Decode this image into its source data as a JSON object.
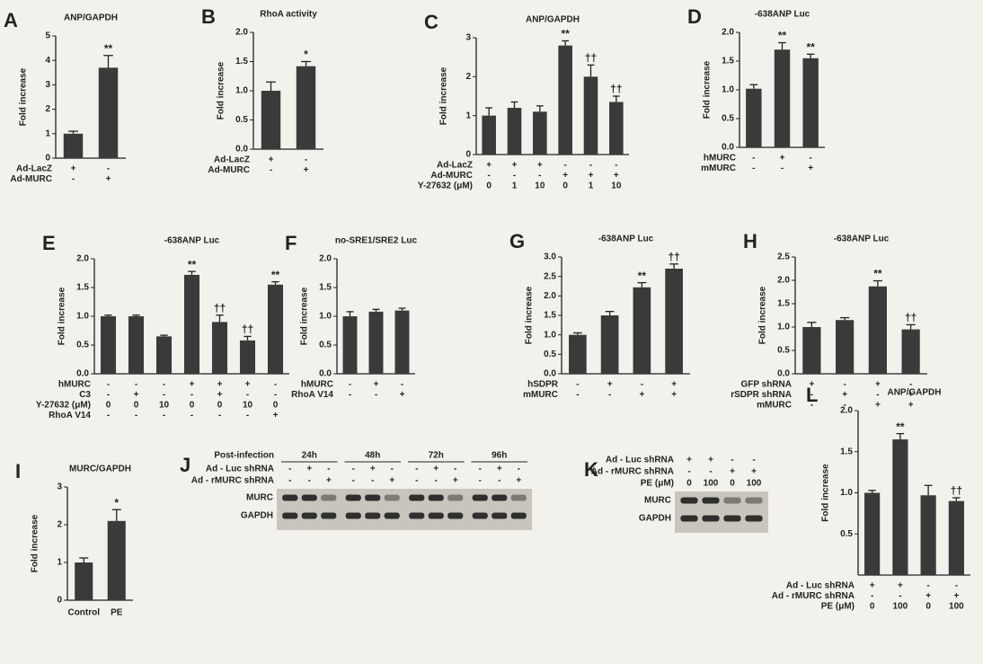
{
  "chart_data": [
    {
      "type": "bar",
      "panel": "A",
      "title": "ANP/GAPDH",
      "ylabel": "Fold increase",
      "values": [
        1.0,
        3.7
      ],
      "errors": [
        0.1,
        0.5
      ],
      "significance": [
        null,
        "**"
      ],
      "ylim": [
        0,
        5
      ],
      "yticks": [
        0,
        1,
        2,
        3,
        4,
        5
      ],
      "color": "#3a3a3a",
      "conditions": [
        {
          "label": "Ad-LacZ",
          "marks": [
            "+",
            "-"
          ]
        },
        {
          "label": "Ad-MURC",
          "marks": [
            "-",
            "+"
          ]
        }
      ]
    },
    {
      "type": "bar",
      "panel": "B",
      "title": "RhoA activity",
      "ylabel": "Fold increase",
      "values": [
        1.0,
        1.42
      ],
      "errors": [
        0.15,
        0.08
      ],
      "significance": [
        null,
        "*"
      ],
      "ylim": [
        0,
        2.0
      ],
      "yticks": [
        {
          "value": 0,
          "label": "0.0"
        },
        0.5,
        {
          "value": 1,
          "label": "1.0"
        },
        1.5,
        {
          "value": 2,
          "label": "2.0"
        }
      ],
      "color": "#3a3a3a",
      "conditions": [
        {
          "label": "Ad-LacZ",
          "marks": [
            "+",
            "-"
          ]
        },
        {
          "label": "Ad-MURC",
          "marks": [
            "-",
            "+"
          ]
        }
      ]
    },
    {
      "type": "bar",
      "panel": "C",
      "title": "ANP/GAPDH",
      "ylabel": "Fold increase",
      "values": [
        1.0,
        1.2,
        1.1,
        2.8,
        2.0,
        1.35
      ],
      "errors": [
        0.2,
        0.15,
        0.15,
        0.12,
        0.3,
        0.15
      ],
      "significance": [
        null,
        null,
        null,
        "**",
        "††",
        "††"
      ],
      "ylim": [
        0,
        3
      ],
      "yticks": [
        0,
        1,
        2,
        3
      ],
      "color": "#3a3a3a",
      "conditions": [
        {
          "label": "Ad-LacZ",
          "marks": [
            "+",
            "+",
            "+",
            "-",
            "-",
            "-"
          ]
        },
        {
          "label": "Ad-MURC",
          "marks": [
            "-",
            "-",
            "-",
            "+",
            "+",
            "+"
          ]
        },
        {
          "label": "Y-27632 (μM)",
          "marks": [
            "0",
            "1",
            "10",
            "0",
            "1",
            "10"
          ]
        }
      ]
    },
    {
      "type": "bar",
      "panel": "D",
      "title": "-638ANP Luc",
      "ylabel": "Fold increase",
      "values": [
        1.02,
        1.7,
        1.55
      ],
      "errors": [
        0.07,
        0.12,
        0.07
      ],
      "significance": [
        null,
        "**",
        "**"
      ],
      "ylim": [
        0,
        2.0
      ],
      "yticks": [
        {
          "value": 0,
          "label": "0.0"
        },
        0.5,
        {
          "value": 1,
          "label": "1.0"
        },
        1.5,
        {
          "value": 2,
          "label": "2.0"
        }
      ],
      "color": "#3a3a3a",
      "conditions": [
        {
          "label": "hMURC",
          "marks": [
            "-",
            "+",
            "-"
          ]
        },
        {
          "label": "mMURC",
          "marks": [
            "-",
            "-",
            "+"
          ]
        }
      ]
    },
    {
      "type": "bar",
      "panel": "E",
      "title": "-638ANP Luc",
      "ylabel": "Fold increase",
      "values": [
        1.0,
        1.0,
        0.65,
        1.72,
        0.9,
        0.58,
        1.55
      ],
      "errors": [
        0.02,
        0.02,
        0.02,
        0.06,
        0.12,
        0.07,
        0.05
      ],
      "significance": [
        null,
        null,
        null,
        "**",
        "††",
        "††",
        "**"
      ],
      "ylim": [
        0,
        2.0
      ],
      "yticks": [
        {
          "value": 0,
          "label": "0.0"
        },
        0.5,
        {
          "value": 1,
          "label": "1.0"
        },
        1.5,
        {
          "value": 2,
          "label": "2.0"
        }
      ],
      "color": "#3a3a3a",
      "conditions": [
        {
          "label": "hMURC",
          "marks": [
            "-",
            "-",
            "-",
            "+",
            "+",
            "+",
            "-"
          ]
        },
        {
          "label": "C3",
          "marks": [
            "-",
            "+",
            "-",
            "-",
            "+",
            "-",
            "-"
          ]
        },
        {
          "label": "Y-27632 (μM)",
          "marks": [
            "0",
            "0",
            "10",
            "0",
            "0",
            "10",
            "0"
          ]
        },
        {
          "label": "RhoA V14",
          "marks": [
            "-",
            "-",
            "-",
            "-",
            "-",
            "-",
            "+"
          ]
        }
      ]
    },
    {
      "type": "bar",
      "panel": "F",
      "title": "no-SRE1/SRE2 Luc",
      "ylabel": "Fold increase",
      "values": [
        1.0,
        1.08,
        1.1
      ],
      "errors": [
        0.08,
        0.04,
        0.04
      ],
      "significance": [
        null,
        null,
        null
      ],
      "ylim": [
        0,
        2.0
      ],
      "yticks": [
        {
          "value": 0,
          "label": "0.0"
        },
        0.5,
        {
          "value": 1,
          "label": "1.0"
        },
        1.5,
        {
          "value": 2,
          "label": "2.0"
        }
      ],
      "color": "#3a3a3a",
      "conditions": [
        {
          "label": "hMURC",
          "marks": [
            "-",
            "+",
            "-"
          ]
        },
        {
          "label": "RhoA V14",
          "marks": [
            "-",
            "-",
            "+"
          ]
        }
      ]
    },
    {
      "type": "bar",
      "panel": "G",
      "title": "-638ANP Luc",
      "ylabel": "Fold increase",
      "values": [
        1.0,
        1.5,
        2.22,
        2.7
      ],
      "errors": [
        0.05,
        0.1,
        0.12,
        0.12
      ],
      "significance": [
        null,
        null,
        "**",
        "††"
      ],
      "ylim": [
        0,
        3.0
      ],
      "yticks": [
        {
          "value": 0,
          "label": "0.0"
        },
        0.5,
        {
          "value": 1,
          "label": "1.0"
        },
        1.5,
        {
          "value": 2,
          "label": "2.0"
        },
        2.5,
        {
          "value": 3,
          "label": "3.0"
        }
      ],
      "color": "#3a3a3a",
      "conditions": [
        {
          "label": "hSDPR",
          "marks": [
            "-",
            "+",
            "-",
            "+"
          ]
        },
        {
          "label": "mMURC",
          "marks": [
            "-",
            "-",
            "+",
            "+"
          ]
        }
      ]
    },
    {
      "type": "bar",
      "panel": "H",
      "title": "-638ANP Luc",
      "ylabel": "Fold increase",
      "values": [
        1.0,
        1.15,
        1.87,
        0.95
      ],
      "errors": [
        0.1,
        0.05,
        0.12,
        0.1
      ],
      "significance": [
        null,
        null,
        "**",
        "††"
      ],
      "ylim": [
        0,
        2.5
      ],
      "yticks": [
        {
          "value": 0,
          "label": "0.0"
        },
        0.5,
        {
          "value": 1,
          "label": "1.0"
        },
        1.5,
        {
          "value": 2,
          "label": "2.0"
        },
        2.5
      ],
      "color": "#3a3a3a",
      "conditions": [
        {
          "label": "GFP shRNA",
          "marks": [
            "+",
            "-",
            "+",
            "-"
          ]
        },
        {
          "label": "rSDPR shRNA",
          "marks": [
            "-",
            "+",
            "-",
            "+"
          ]
        },
        {
          "label": "mMURC",
          "marks": [
            "-",
            "-",
            "+",
            "+"
          ]
        }
      ]
    },
    {
      "type": "bar",
      "panel": "I",
      "title": "MURC/GAPDH",
      "ylabel": "Fold increase",
      "categories": [
        "Control",
        "PE"
      ],
      "values": [
        1.0,
        2.1
      ],
      "errors": [
        0.12,
        0.3
      ],
      "significance": [
        null,
        "*"
      ],
      "ylim": [
        0,
        3
      ],
      "yticks": [
        0,
        1,
        2,
        3
      ],
      "color": "#3a3a3a"
    },
    {
      "type": "bar",
      "panel": "L",
      "title": "ANP/GAPDH",
      "ylabel": "Fold increase",
      "values": [
        1.0,
        1.65,
        0.97,
        0.9
      ],
      "errors": [
        0.03,
        0.07,
        0.12,
        0.04
      ],
      "significance": [
        null,
        "**",
        null,
        "††"
      ],
      "ylim": [
        0,
        2.0
      ],
      "yticks": [
        0.5,
        {
          "value": 1,
          "label": "1.0"
        },
        1.5,
        {
          "value": 2,
          "label": "2.0"
        }
      ],
      "color": "#3a3a3a",
      "conditions": [
        {
          "label": "Ad - Luc shRNA",
          "marks": [
            "+",
            "+",
            "-",
            "-"
          ]
        },
        {
          "label": "Ad - rMURC shRNA",
          "marks": [
            "-",
            "-",
            "+",
            "+"
          ]
        },
        {
          "label": "PE (μM)",
          "marks": [
            "0",
            "100",
            "0",
            "100"
          ]
        }
      ]
    }
  ],
  "blots": [
    {
      "panel": "J",
      "header": "Post-infection",
      "groups": [
        "24h",
        "48h",
        "72h",
        "96h"
      ],
      "rows": [
        {
          "label": "Ad - Luc shRNA",
          "marks": [
            "-",
            "+",
            "-",
            "-",
            "+",
            "-",
            "-",
            "+",
            "-",
            "-",
            "+",
            "-"
          ]
        },
        {
          "label": "Ad - rMURC shRNA",
          "marks": [
            "-",
            "-",
            "+",
            "-",
            "-",
            "+",
            "-",
            "-",
            "+",
            "-",
            "-",
            "+"
          ]
        }
      ],
      "bands": [
        "MURC",
        "GAPDH"
      ]
    },
    {
      "panel": "K",
      "rows": [
        {
          "label": "Ad - Luc shRNA",
          "marks": [
            "+",
            "+",
            "-",
            "-"
          ]
        },
        {
          "label": "Ad - rMURC shRNA",
          "marks": [
            "-",
            "-",
            "+",
            "+"
          ]
        },
        {
          "label": "PE (μM)",
          "marks": [
            "0",
            "100",
            "0",
            "100"
          ]
        }
      ],
      "bands": [
        "MURC",
        "GAPDH"
      ]
    }
  ]
}
